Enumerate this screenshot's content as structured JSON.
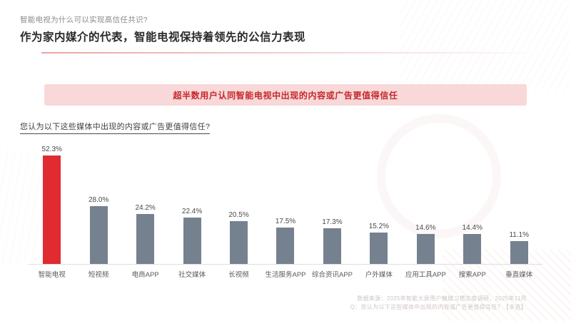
{
  "slide": {
    "kicker": "智能电视为什么可以实现高信任共识?",
    "title": "作为家内媒介的代表，智能电视保持着领先的公信力表现",
    "banner": "超半数用户认同智能电视中出现的内容或广告更值得信任",
    "question": "您认为以下这些媒体中出现的内容或广告更值得信任?",
    "source_line1": "数据来源：2025年智能大屏用户触媒习惯态度调研，2025年11月",
    "source_line2": "Q：您认为以下这些媒体中出现的内容或广告更值得信任？【多选】"
  },
  "chart_data": {
    "type": "bar",
    "title": "您认为以下这些媒体中出现的内容或广告更值得信任?",
    "categories": [
      "智能电视",
      "短视频",
      "电商APP",
      "社交媒体",
      "长视频",
      "生活服务APP",
      "综合资讯APP",
      "户外媒体",
      "应用工具APP",
      "搜索APP",
      "垂直媒体"
    ],
    "values": [
      52.3,
      28.0,
      24.2,
      22.4,
      20.5,
      17.5,
      17.3,
      15.2,
      14.6,
      14.4,
      11.1
    ],
    "value_labels": [
      "52.3%",
      "28.0%",
      "24.2%",
      "22.4%",
      "20.5%",
      "17.5%",
      "17.3%",
      "15.2%",
      "14.6%",
      "14.4%",
      "11.1%"
    ],
    "value_suffix": "%",
    "highlight_index": 0,
    "highlight_category": "智能电视",
    "colors": {
      "highlight": "#e02b31",
      "default": "#76818f"
    },
    "xlabel": "",
    "ylabel": "",
    "ylim": [
      0,
      55
    ],
    "grid": false,
    "legend": false
  }
}
